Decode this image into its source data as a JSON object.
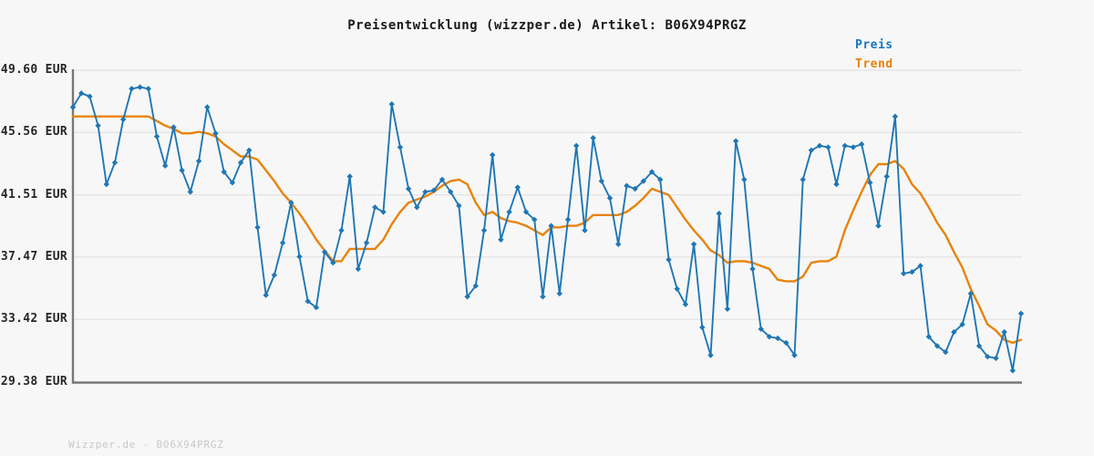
{
  "title": "Preisentwicklung (wizzper.de) Artikel: B06X94PRGZ",
  "legend": {
    "preis_label": "Preis",
    "trend_label": "Trend"
  },
  "footer": "Wizzper.de - B06X94PRGZ",
  "colors": {
    "preis": "#1f77b4",
    "trend": "#e8830c",
    "grid": "#e3e3e3",
    "axis": "#787878",
    "tick_label": "#262626",
    "legend_preis": "#1877bd",
    "legend_trend": "#e5820b",
    "background": "#f7f7f7",
    "footer_text": "#c8c8c8"
  },
  "chart_data": {
    "type": "line",
    "title": "Preisentwicklung (wizzper.de) Artikel: B06X94PRGZ",
    "xlabel": "",
    "ylabel": "EUR",
    "ylim": [
      29.38,
      49.6
    ],
    "grid": "horizontal",
    "legend_position": "top-right",
    "y_tick_values": [
      49.6,
      45.56,
      41.51,
      37.47,
      33.42,
      29.38
    ],
    "y_tick_labels": [
      "49.60 EUR",
      "45.56 EUR",
      "41.51 EUR",
      "37.47 EUR",
      "33.42 EUR",
      "29.38 EUR"
    ],
    "x_tick_labels": [],
    "series": [
      {
        "name": "Preis",
        "color": "#1f77b4",
        "marker": "diamond",
        "values": [
          47.2,
          48.1,
          47.9,
          46.0,
          42.2,
          43.6,
          46.4,
          48.4,
          48.5,
          48.4,
          45.3,
          43.4,
          45.9,
          43.1,
          41.7,
          43.7,
          47.2,
          45.5,
          43.0,
          42.3,
          43.6,
          44.4,
          39.4,
          35.0,
          36.3,
          38.4,
          41.0,
          37.5,
          34.6,
          34.2,
          37.8,
          37.1,
          39.2,
          42.7,
          36.7,
          38.4,
          40.7,
          40.4,
          47.4,
          44.6,
          41.9,
          40.7,
          41.7,
          41.8,
          42.5,
          41.7,
          40.8,
          34.9,
          35.6,
          39.2,
          44.1,
          38.6,
          40.4,
          42.0,
          40.4,
          39.9,
          34.9,
          39.5,
          35.1,
          39.9,
          44.7,
          39.2,
          45.2,
          42.4,
          41.3,
          38.3,
          42.1,
          41.9,
          42.4,
          43.0,
          42.5,
          37.3,
          35.4,
          34.4,
          38.3,
          32.9,
          31.1,
          40.3,
          34.1,
          45.0,
          42.5,
          36.7,
          32.8,
          32.3,
          32.2,
          31.9,
          31.1,
          42.5,
          44.4,
          44.7,
          44.6,
          42.2,
          44.7,
          44.6,
          44.8,
          42.3,
          39.5,
          42.7,
          46.6,
          36.4,
          36.5,
          36.9,
          32.3,
          31.7,
          31.3,
          32.6,
          33.1,
          35.1,
          31.7,
          31.0,
          30.9,
          32.6,
          30.1,
          33.8
        ]
      },
      {
        "name": "Trend",
        "color": "#e8830c",
        "marker": "none",
        "values": [
          46.6,
          46.6,
          46.6,
          46.6,
          46.6,
          46.6,
          46.6,
          46.6,
          46.6,
          46.6,
          46.3,
          46.0,
          45.8,
          45.5,
          45.5,
          45.6,
          45.5,
          45.3,
          44.8,
          44.4,
          44.0,
          44.0,
          43.8,
          43.1,
          42.4,
          41.6,
          41.0,
          40.3,
          39.5,
          38.6,
          37.9,
          37.2,
          37.2,
          38.0,
          38.0,
          38.0,
          38.0,
          38.6,
          39.6,
          40.4,
          41.0,
          41.2,
          41.4,
          41.7,
          42.1,
          42.4,
          42.5,
          42.2,
          41.0,
          40.2,
          40.4,
          40.0,
          39.8,
          39.7,
          39.5,
          39.2,
          38.9,
          39.4,
          39.4,
          39.5,
          39.5,
          39.7,
          40.2,
          40.2,
          40.2,
          40.2,
          40.4,
          40.8,
          41.3,
          41.9,
          41.7,
          41.5,
          40.7,
          39.9,
          39.2,
          38.6,
          37.9,
          37.6,
          37.1,
          37.2,
          37.2,
          37.1,
          36.9,
          36.7,
          36.0,
          35.9,
          35.9,
          36.2,
          37.1,
          37.2,
          37.2,
          37.5,
          39.2,
          40.5,
          41.7,
          42.8,
          43.5,
          43.5,
          43.7,
          43.2,
          42.2,
          41.6,
          40.7,
          39.7,
          38.9,
          37.8,
          36.8,
          35.4,
          34.3,
          33.1,
          32.7,
          32.1,
          31.9,
          32.1
        ]
      }
    ]
  }
}
